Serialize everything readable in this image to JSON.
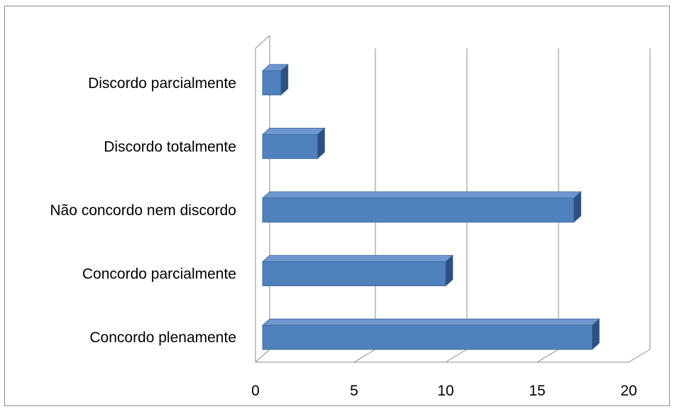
{
  "chart_data": {
    "type": "bar",
    "orientation": "horizontal",
    "style": "3d",
    "categories": [
      "Discordo parcialmente",
      "Discordo totalmente",
      "Não concordo nem discordo",
      "Concordo parcialmente",
      "Concordo plenamente"
    ],
    "values": [
      1,
      3,
      17,
      10,
      18
    ],
    "xlim": [
      0,
      20
    ],
    "xticks": [
      "0",
      "5",
      "10",
      "15",
      "20"
    ],
    "grid": true,
    "legend": "none",
    "title": "",
    "xlabel": "",
    "ylabel": "",
    "colors": {
      "bar_front": "#4f81bd",
      "bar_top": "#6e97cf",
      "bar_side": "#2d5081",
      "bar_edge": "#3a6496",
      "grid": "#8c8c8c",
      "frame": "#8c8c8c"
    }
  }
}
